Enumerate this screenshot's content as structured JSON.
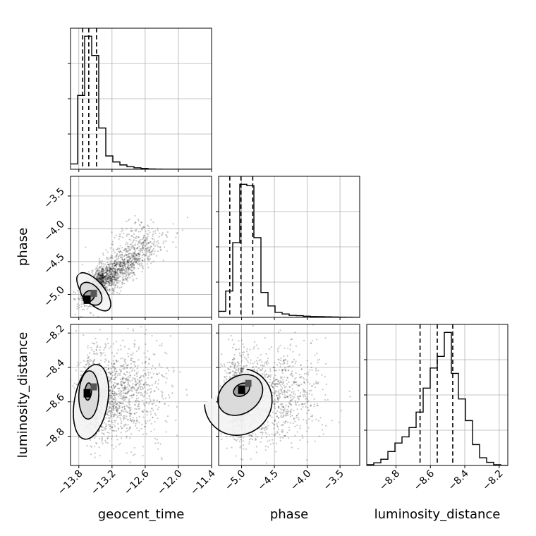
{
  "chart_data": {
    "type": "corner",
    "grid": true,
    "parameters": [
      "geocent_time",
      "phase",
      "luminosity_distance"
    ],
    "axes": {
      "geocent_time": {
        "label": "geocent_time",
        "range": [
          -13.95,
          -11.4
        ],
        "ticks": [
          -13.8,
          -13.2,
          -12.6,
          -12.0,
          -11.4
        ],
        "tick_labels": [
          "−13.8",
          "−13.2",
          "−12.6",
          "−12.0",
          "−11.4"
        ]
      },
      "phase": {
        "label": "phase",
        "range": [
          -5.35,
          -3.2
        ],
        "ticks": [
          -5.0,
          -4.5,
          -4.0,
          -3.5
        ],
        "tick_labels": [
          "−5.0",
          "−4.5",
          "−4.0",
          "−3.5"
        ]
      },
      "luminosity_distance": {
        "label": "luminosity_distance",
        "range": [
          -8.97,
          -8.15
        ],
        "ticks": [
          -8.8,
          -8.6,
          -8.4,
          -8.2
        ],
        "tick_labels": [
          "−8.8",
          "−8.6",
          "−8.4",
          "−8.2"
        ]
      }
    },
    "histograms": {
      "geocent_time": {
        "bin_edges": [
          -13.95,
          -13.8225,
          -13.695,
          -13.5675,
          -13.44,
          -13.3125,
          -13.185,
          -13.0575,
          -12.93,
          -12.8025,
          -12.675,
          -12.5475,
          -12.42,
          -12.2925,
          -12.165,
          -12.0375,
          -11.91,
          -11.7825,
          -11.655,
          -11.5275,
          -11.4
        ],
        "counts": [
          80,
          1110,
          2000,
          1710,
          620,
          200,
          110,
          65,
          38,
          22,
          12,
          4,
          2,
          0,
          0,
          0,
          0,
          0,
          0,
          0
        ],
        "quantiles": [
          -13.73,
          -13.62,
          -13.48
        ]
      },
      "phase": {
        "bin_edges": [
          -5.35,
          -5.2425,
          -5.135,
          -5.0275,
          -4.92,
          -4.8125,
          -4.705,
          -4.5975,
          -4.49,
          -4.3825,
          -4.275,
          -4.1675,
          -4.06,
          -3.9525,
          -3.845,
          -3.7375,
          -3.63,
          -3.5225,
          -3.415,
          -3.3075,
          -3.2
        ],
        "counts": [
          85,
          370,
          1050,
          1870,
          1850,
          1120,
          350,
          160,
          70,
          48,
          28,
          24,
          16,
          12,
          10,
          8,
          5,
          3,
          2,
          0
        ],
        "quantiles": [
          -5.18,
          -5.01,
          -4.83
        ]
      },
      "luminosity_distance": {
        "bin_edges": [
          -8.97,
          -8.929,
          -8.888,
          -8.847,
          -8.806,
          -8.765,
          -8.724,
          -8.683,
          -8.642,
          -8.601,
          -8.56,
          -8.519,
          -8.478,
          -8.437,
          -8.396,
          -8.355,
          -8.314,
          -8.273,
          -8.232,
          -8.191,
          -8.15
        ],
        "counts": [
          10,
          35,
          80,
          180,
          290,
          370,
          490,
          690,
          1000,
          1260,
          1410,
          1720,
          1190,
          860,
          580,
          270,
          100,
          40,
          10,
          0
        ],
        "quantiles": [
          -8.66,
          -8.56,
          -8.47
        ]
      }
    },
    "pairs": [
      {
        "x": "geocent_time",
        "y": "phase",
        "peak": [
          -13.65,
          -5.08
        ],
        "contours": [
          {
            "center": [
              -13.62,
              -5.03
            ],
            "radii": [
              0.09,
              0.1
            ],
            "angle": 45
          },
          {
            "center": [
              -13.58,
              -4.99
            ],
            "radii": [
              0.24,
              0.13
            ],
            "angle": 42
          },
          {
            "center": [
              -13.53,
              -4.96
            ],
            "radii": [
              0.42,
              0.16
            ],
            "angle": 40
          }
        ],
        "samples": {
          "center": [
            -13.35,
            -4.8
          ],
          "trend": 0.58,
          "spread": [
            0.3,
            0.12
          ],
          "tail": [
            -12.6,
            -4.0
          ]
        }
      },
      {
        "x": "geocent_time",
        "y": "luminosity_distance",
        "peak": [
          -13.65,
          -8.55
        ],
        "contours": [
          {
            "center": [
              -13.63,
              -8.54
            ],
            "radii": [
              0.06,
              0.05
            ],
            "angle": 85
          },
          {
            "center": [
              -13.62,
              -8.56
            ],
            "radii": [
              0.18,
              0.14
            ],
            "angle": 88
          },
          {
            "center": [
              -13.58,
              -8.6
            ],
            "radii": [
              0.3,
              0.22
            ],
            "angle": 80
          }
        ],
        "samples": {
          "center": [
            -13.45,
            -8.57
          ],
          "trend": 0.0,
          "spread": [
            0.28,
            0.12
          ],
          "tail": [
            -12.2,
            -8.5
          ]
        }
      },
      {
        "x": "phase",
        "y": "luminosity_distance",
        "peak": [
          -5.0,
          -8.53
        ],
        "contours": [
          {
            "center": [
              -5.0,
              -8.53
            ],
            "radii": [
              0.09,
              0.05
            ],
            "angle": 30
          },
          {
            "center": [
              -5.02,
              -8.56
            ],
            "radii": [
              0.28,
              0.14
            ],
            "angle": 35
          },
          {
            "center": [
              -5.05,
              -8.6
            ],
            "radii": [
              0.5,
              0.2
            ],
            "angle": 40
          }
        ],
        "samples": {
          "center": [
            -4.95,
            -8.58
          ],
          "trend": 0.0,
          "spread": [
            0.28,
            0.12
          ],
          "tail": [
            -3.8,
            -8.5
          ]
        }
      }
    ]
  }
}
